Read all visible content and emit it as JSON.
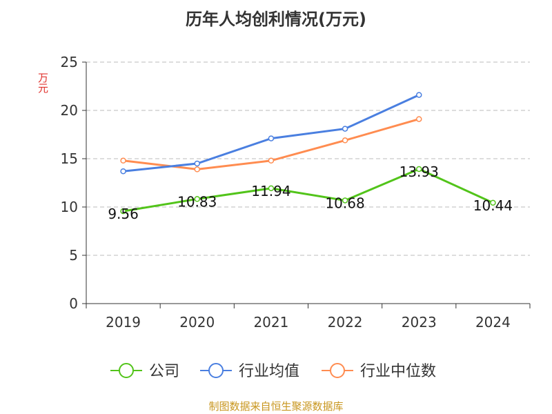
{
  "chart_data": {
    "type": "line",
    "title": "历年人均创利情况(万元)",
    "ylabel": "万元",
    "xlabel": "",
    "categories": [
      "2019",
      "2020",
      "2021",
      "2022",
      "2023",
      "2024"
    ],
    "ylim": [
      0,
      25
    ],
    "yticks": [
      0,
      5,
      10,
      15,
      20,
      25
    ],
    "grid": true,
    "legend_position": "bottom",
    "series": [
      {
        "name": "公司",
        "color": "#52c41a",
        "values": [
          9.56,
          10.83,
          11.94,
          10.68,
          13.93,
          10.44
        ],
        "labels": [
          "9.56",
          "10.83",
          "11.94",
          "10.68",
          "13.93",
          "10.44"
        ]
      },
      {
        "name": "行业均值",
        "color": "#4a7fe0",
        "values": [
          13.7,
          14.5,
          17.1,
          18.1,
          21.6,
          null
        ]
      },
      {
        "name": "行业中位数",
        "color": "#ff8c50",
        "values": [
          14.8,
          13.9,
          14.8,
          16.9,
          19.1,
          null
        ]
      }
    ]
  },
  "source": "制图数据来自恒生聚源数据库"
}
